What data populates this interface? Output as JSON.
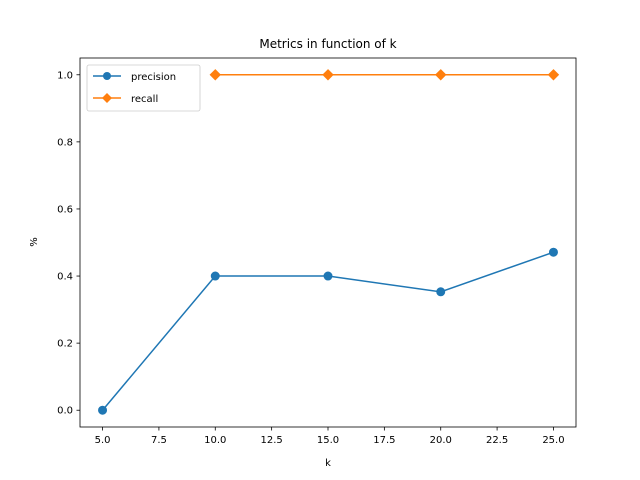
{
  "chart_data": {
    "type": "line",
    "title": "Metrics in function of k",
    "xlabel": "k",
    "ylabel": "%",
    "xlim": [
      4.0,
      26.0
    ],
    "ylim": [
      -0.05,
      1.05
    ],
    "xticks": [
      5.0,
      7.5,
      10.0,
      12.5,
      15.0,
      17.5,
      20.0,
      22.5,
      25.0
    ],
    "xtick_labels": [
      "5.0",
      "7.5",
      "10.0",
      "12.5",
      "15.0",
      "17.5",
      "20.0",
      "22.5",
      "25.0"
    ],
    "yticks": [
      0.0,
      0.2,
      0.4,
      0.6,
      0.8,
      1.0
    ],
    "ytick_labels": [
      "0.0",
      "0.2",
      "0.4",
      "0.6",
      "0.8",
      "1.0"
    ],
    "grid": false,
    "legend_position": "top-left",
    "series": [
      {
        "name": "precision",
        "color": "#1f77b4",
        "marker": "circle",
        "x": [
          5,
          10,
          15,
          20,
          25
        ],
        "y": [
          0.0,
          0.4,
          0.4,
          0.353,
          0.471
        ]
      },
      {
        "name": "recall",
        "color": "#ff7f0e",
        "marker": "diamond",
        "x": [
          10,
          15,
          20,
          25
        ],
        "y": [
          1.0,
          1.0,
          1.0,
          1.0
        ]
      }
    ]
  }
}
